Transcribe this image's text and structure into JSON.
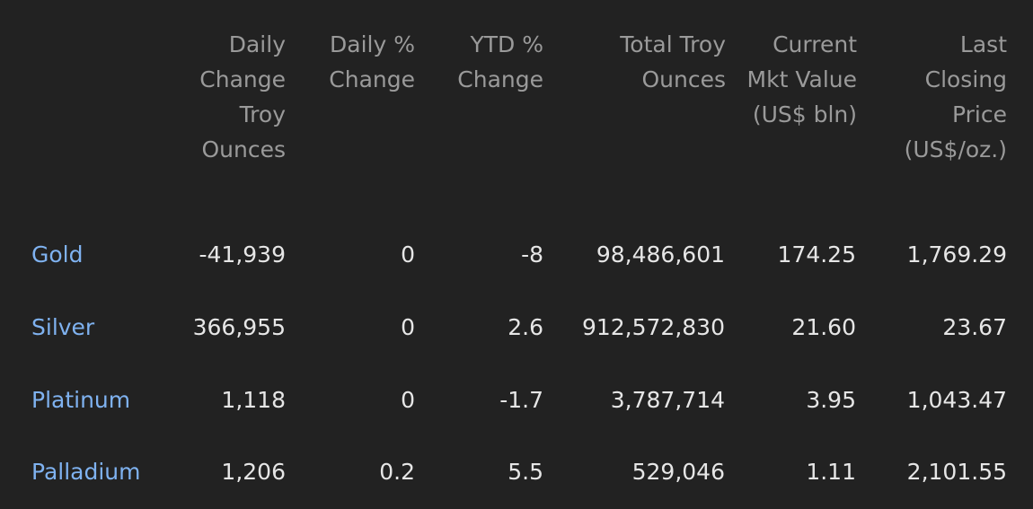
{
  "headers": [
    "Daily Change Troy Ounces",
    "Daily % Change",
    "YTD % Change",
    "Total Troy Ounces",
    "Current Mkt Value (US$ bln)",
    "Last Closing Price (US$/oz.)"
  ],
  "rows": [
    {
      "metal": "Gold",
      "values": [
        "-41,939",
        "0",
        "-8",
        "98,486,601",
        "174.25",
        "1,769.29"
      ]
    },
    {
      "metal": "Silver",
      "values": [
        "366,955",
        "0",
        "2.6",
        "912,572,830",
        "21.60",
        "23.67"
      ]
    },
    {
      "metal": "Platinum",
      "values": [
        "1,118",
        "0",
        "-1.7",
        "3,787,714",
        "3.95",
        "1,043.47"
      ]
    },
    {
      "metal": "Palladium",
      "values": [
        "1,206",
        "0.2",
        "5.5",
        "529,046",
        "1.11",
        "2,101.55"
      ]
    }
  ],
  "colors": {
    "background": "#222222",
    "header_text": "#9a9a9a",
    "cell_text": "#e6e6e6",
    "link": "#7fb2f0"
  }
}
